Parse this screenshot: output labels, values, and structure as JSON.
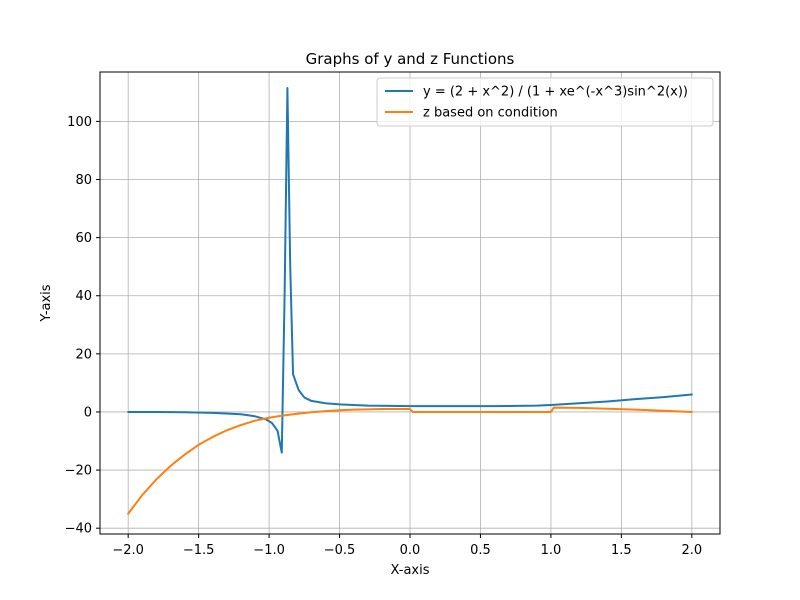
{
  "chart_data": {
    "type": "line",
    "title": "Graphs of y and z Functions",
    "xlabel": "X-axis",
    "ylabel": "Y-axis",
    "xlim": [
      -2.2,
      2.2
    ],
    "ylim": [
      -42,
      117
    ],
    "xticks": [
      -2.0,
      -1.5,
      -1.0,
      -0.5,
      0.0,
      0.5,
      1.0,
      1.5,
      2.0
    ],
    "xtick_labels": [
      "−2.0",
      "−1.5",
      "−1.0",
      "−0.5",
      "0.0",
      "0.5",
      "1.0",
      "1.5",
      "2.0"
    ],
    "yticks": [
      -40,
      -20,
      0,
      20,
      40,
      60,
      80,
      100
    ],
    "ytick_labels": [
      "−40",
      "−20",
      "0",
      "20",
      "40",
      "60",
      "80",
      "100"
    ],
    "grid": true,
    "legend_position": "top-right",
    "series": [
      {
        "name": "y = (2 + x^2) / (1 + xe^(-x^3)sin^2(x))",
        "color": "#1f77b4",
        "points": [
          [
            -2.0,
            0.0
          ],
          [
            -1.8,
            0.0
          ],
          [
            -1.6,
            -0.1
          ],
          [
            -1.4,
            -0.3
          ],
          [
            -1.2,
            -0.8
          ],
          [
            -1.1,
            -1.5
          ],
          [
            -1.02,
            -2.6
          ],
          [
            -0.98,
            -3.8
          ],
          [
            -0.94,
            -6.5
          ],
          [
            -0.91,
            -14.0
          ],
          [
            -0.89,
            40.0
          ],
          [
            -0.87,
            111.5
          ],
          [
            -0.85,
            50.0
          ],
          [
            -0.83,
            13.0
          ],
          [
            -0.79,
            7.5
          ],
          [
            -0.75,
            5.0
          ],
          [
            -0.7,
            3.8
          ],
          [
            -0.6,
            3.0
          ],
          [
            -0.5,
            2.6
          ],
          [
            -0.3,
            2.2
          ],
          [
            0.0,
            2.0
          ],
          [
            0.3,
            2.0
          ],
          [
            0.6,
            2.0
          ],
          [
            0.9,
            2.2
          ],
          [
            1.0,
            2.4
          ],
          [
            1.2,
            3.0
          ],
          [
            1.4,
            3.6
          ],
          [
            1.6,
            4.4
          ],
          [
            1.8,
            5.1
          ],
          [
            2.0,
            6.0
          ]
        ]
      },
      {
        "name": "z based on condition",
        "color": "#ff7f0e",
        "points": [
          [
            -2.0,
            -35.0
          ],
          [
            -1.9,
            -28.6
          ],
          [
            -1.8,
            -23.2
          ],
          [
            -1.7,
            -18.6
          ],
          [
            -1.6,
            -14.7
          ],
          [
            -1.5,
            -11.3
          ],
          [
            -1.4,
            -8.6
          ],
          [
            -1.3,
            -6.3
          ],
          [
            -1.2,
            -4.5
          ],
          [
            -1.1,
            -3.0
          ],
          [
            -1.0,
            -2.0
          ],
          [
            -0.9,
            -1.2
          ],
          [
            -0.8,
            -0.6
          ],
          [
            -0.7,
            -0.1
          ],
          [
            -0.6,
            0.3
          ],
          [
            -0.5,
            0.6
          ],
          [
            -0.4,
            0.8
          ],
          [
            -0.3,
            0.9
          ],
          [
            -0.2,
            1.0
          ],
          [
            -0.1,
            1.0
          ],
          [
            0.0,
            1.0
          ],
          [
            0.02,
            0.0
          ],
          [
            0.5,
            0.0
          ],
          [
            1.0,
            0.0
          ],
          [
            1.02,
            1.5
          ],
          [
            1.2,
            1.4
          ],
          [
            1.4,
            1.1
          ],
          [
            1.6,
            0.8
          ],
          [
            1.8,
            0.4
          ],
          [
            2.0,
            0.0
          ]
        ]
      }
    ]
  }
}
